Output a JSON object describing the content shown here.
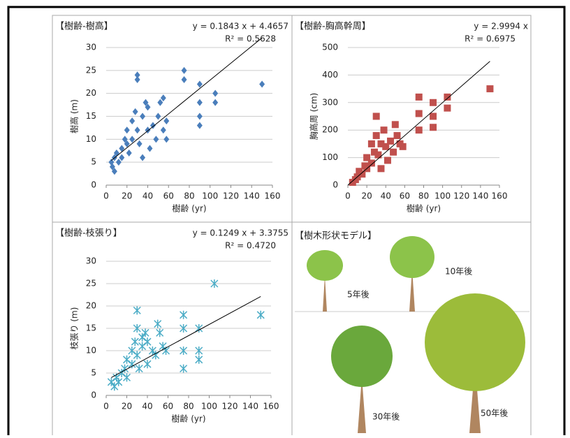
{
  "chart_data": [
    {
      "type": "scatter",
      "title": "【樹齢-樹高】",
      "x_label": "樹齢 (yr)",
      "y_label": "樹高 (m)",
      "marker": "diamond",
      "color": "#4a7ebb",
      "xlim": [
        0,
        160
      ],
      "xticks": [
        0,
        20,
        40,
        60,
        80,
        100,
        120,
        140,
        160
      ],
      "ylim": [
        0,
        30
      ],
      "yticks": [
        0,
        5,
        10,
        15,
        20,
        25,
        30
      ],
      "grid": true,
      "x": [
        5,
        6,
        8,
        8,
        10,
        12,
        15,
        15,
        18,
        20,
        20,
        22,
        25,
        25,
        28,
        30,
        30,
        30,
        32,
        35,
        35,
        38,
        40,
        40,
        42,
        45,
        48,
        50,
        52,
        55,
        55,
        58,
        58,
        75,
        75,
        90,
        90,
        90,
        90,
        105,
        105,
        150
      ],
      "values": [
        5,
        4,
        3,
        6,
        7,
        5,
        8,
        6,
        10,
        9,
        12,
        7,
        10,
        14,
        16,
        24,
        23,
        12,
        9,
        15,
        6,
        18,
        17,
        12,
        8,
        13,
        10,
        15,
        18,
        19,
        12,
        10,
        14,
        25,
        23,
        22,
        18,
        15,
        13,
        20,
        18,
        22
      ],
      "trendline": {
        "slope": 0.1843,
        "intercept": 4.4657,
        "label": "y = 0.1843 x + 4.4657",
        "x": [
          5,
          150
        ]
      },
      "r2": 0.5628,
      "r2_label": "R² = 0.5628"
    },
    {
      "type": "scatter",
      "title": "【樹齢-胸高幹周】",
      "x_label": "樹齢 (yr)",
      "y_label": "胸高周 (cm)",
      "marker": "square",
      "color": "#c0504d",
      "xlim": [
        0,
        160
      ],
      "xticks": [
        0,
        20,
        40,
        60,
        80,
        100,
        120,
        140,
        160
      ],
      "ylim": [
        0,
        500
      ],
      "yticks": [
        0,
        100,
        200,
        300,
        400,
        500
      ],
      "grid": true,
      "x": [
        5,
        8,
        10,
        12,
        15,
        18,
        20,
        20,
        25,
        25,
        28,
        30,
        30,
        32,
        35,
        35,
        38,
        40,
        42,
        45,
        48,
        50,
        52,
        55,
        58,
        75,
        75,
        75,
        90,
        90,
        90,
        105,
        105,
        150
      ],
      "values": [
        10,
        20,
        30,
        50,
        40,
        70,
        60,
        100,
        80,
        150,
        120,
        250,
        180,
        110,
        150,
        60,
        200,
        140,
        90,
        160,
        120,
        220,
        180,
        150,
        140,
        320,
        260,
        200,
        300,
        250,
        210,
        320,
        280,
        350
      ],
      "trendline": {
        "slope": 2.9994,
        "intercept": 0,
        "label": "y = 2.9994 x",
        "x": [
          0,
          150
        ]
      },
      "r2": 0.6975,
      "r2_label": "R² = 0.6975"
    },
    {
      "type": "scatter",
      "title": "【樹齢-枝張り】",
      "x_label": "樹齢 (yr)",
      "y_label": "枝張り (m)",
      "marker": "asterisk",
      "color": "#4bacc6",
      "xlim": [
        0,
        160
      ],
      "xticks": [
        0,
        20,
        40,
        60,
        80,
        100,
        120,
        140,
        160
      ],
      "ylim": [
        0,
        30
      ],
      "yticks": [
        0,
        5,
        10,
        15,
        20,
        25,
        30
      ],
      "grid": true,
      "x": [
        5,
        8,
        10,
        12,
        15,
        18,
        20,
        20,
        25,
        25,
        28,
        30,
        30,
        30,
        32,
        35,
        35,
        38,
        40,
        40,
        45,
        48,
        50,
        52,
        55,
        58,
        75,
        75,
        75,
        75,
        90,
        90,
        90,
        105,
        150
      ],
      "values": [
        3,
        2,
        4,
        3,
        5,
        6,
        4,
        8,
        7,
        10,
        12,
        19,
        15,
        9,
        6,
        13,
        11,
        14,
        12,
        7,
        10,
        9,
        16,
        14,
        11,
        10,
        18,
        15,
        10,
        6,
        15,
        10,
        8,
        25,
        18
      ],
      "trendline": {
        "slope": 0.1249,
        "intercept": 3.3755,
        "label": "y = 0.1249 x + 3.3755",
        "x": [
          5,
          150
        ]
      },
      "r2": 0.472,
      "r2_label": "R² = 0.4720"
    }
  ],
  "illustration": {
    "title": "【樹木形状モデル】",
    "labels": [
      "5年後",
      "10年後",
      "30年後",
      "50年後"
    ]
  }
}
